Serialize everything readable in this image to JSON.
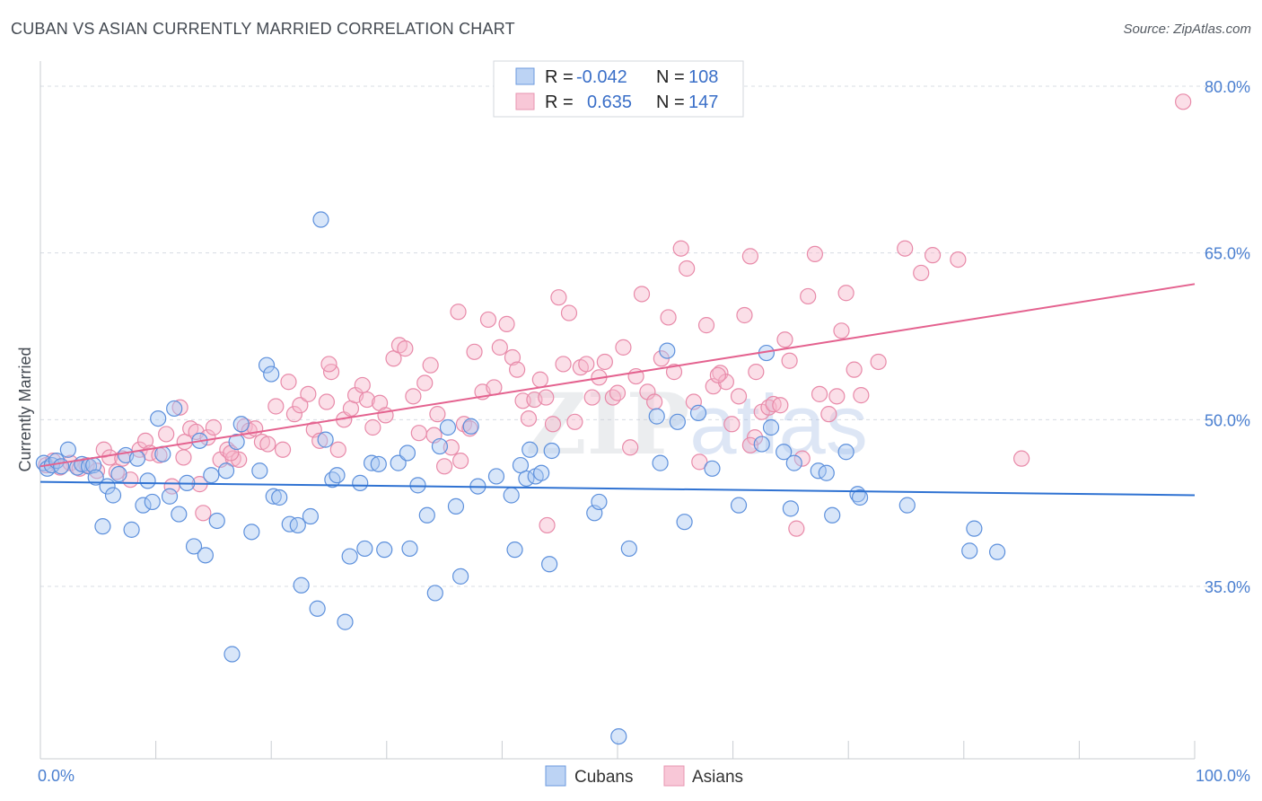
{
  "title": "CUBAN VS ASIAN CURRENTLY MARRIED CORRELATION CHART",
  "source": "Source: ZipAtlas.com",
  "watermark": "ZIPatlas",
  "colors": {
    "cubans_fill": "#a9c7f2",
    "cubans_stroke": "#5d90dc",
    "cubans_line": "#2f72d2",
    "asians_fill": "#f6b7cb",
    "asians_stroke": "#e88aa9",
    "asians_line": "#e4628f",
    "grid": "#d8dce3",
    "tick_label": "#4a7fd0"
  },
  "legend": {
    "rows": [
      {
        "series": "Cubans",
        "r_label": "R =",
        "r_value": "-0.042",
        "n_label": "N =",
        "n_value": "108"
      },
      {
        "series": "Asians",
        "r_label": "R =",
        "r_value": "0.635",
        "n_label": "N =",
        "n_value": "147"
      }
    ]
  },
  "chart_data": {
    "type": "scatter",
    "title": "CUBAN VS ASIAN CURRENTLY MARRIED CORRELATION CHART",
    "xlabel": "",
    "ylabel": "Currently Married",
    "xlim": [
      0,
      100
    ],
    "ylim": [
      20,
      82
    ],
    "x_tick_labels": [
      "0.0%",
      "100.0%"
    ],
    "y_ticks": [
      35,
      50,
      65,
      80
    ],
    "y_tick_labels": [
      "35.0%",
      "50.0%",
      "65.0%",
      "80.0%"
    ],
    "grid": true,
    "legend_position": "bottom-center",
    "series": [
      {
        "name": "Cubans",
        "r": -0.042,
        "n": 108,
        "trend": {
          "x": [
            0,
            100
          ],
          "y": [
            44.4,
            43.2
          ]
        },
        "points": [
          [
            0.3,
            46.1
          ],
          [
            0.6,
            45.6
          ],
          [
            1.0,
            45.9
          ],
          [
            1.4,
            46.3
          ],
          [
            1.8,
            45.8
          ],
          [
            2.4,
            47.3
          ],
          [
            3.2,
            45.7
          ],
          [
            3.6,
            46.0
          ],
          [
            4.2,
            45.8
          ],
          [
            4.6,
            45.9
          ],
          [
            4.8,
            44.8
          ],
          [
            5.4,
            40.4
          ],
          [
            5.8,
            44.0
          ],
          [
            6.3,
            43.2
          ],
          [
            6.8,
            45.1
          ],
          [
            7.4,
            46.8
          ],
          [
            7.9,
            40.1
          ],
          [
            8.4,
            46.5
          ],
          [
            8.9,
            42.3
          ],
          [
            9.3,
            44.5
          ],
          [
            9.7,
            42.6
          ],
          [
            10.2,
            50.1
          ],
          [
            10.6,
            46.9
          ],
          [
            11.2,
            43.1
          ],
          [
            11.6,
            51.0
          ],
          [
            12.0,
            41.5
          ],
          [
            12.7,
            44.3
          ],
          [
            13.3,
            38.6
          ],
          [
            13.8,
            48.1
          ],
          [
            14.3,
            37.8
          ],
          [
            14.8,
            45.0
          ],
          [
            15.3,
            40.9
          ],
          [
            16.1,
            45.4
          ],
          [
            16.6,
            28.9
          ],
          [
            17.0,
            48.0
          ],
          [
            17.4,
            49.6
          ],
          [
            18.3,
            39.9
          ],
          [
            19.0,
            45.4
          ],
          [
            19.6,
            54.9
          ],
          [
            20.0,
            54.1
          ],
          [
            20.2,
            43.1
          ],
          [
            20.7,
            43.0
          ],
          [
            21.6,
            40.6
          ],
          [
            22.3,
            40.5
          ],
          [
            22.6,
            35.1
          ],
          [
            23.4,
            41.3
          ],
          [
            24.0,
            33.0
          ],
          [
            24.3,
            68.0
          ],
          [
            24.7,
            48.2
          ],
          [
            25.3,
            44.6
          ],
          [
            25.7,
            45.0
          ],
          [
            26.4,
            31.8
          ],
          [
            26.8,
            37.7
          ],
          [
            27.7,
            44.3
          ],
          [
            28.1,
            38.4
          ],
          [
            28.7,
            46.1
          ],
          [
            29.3,
            46.0
          ],
          [
            29.8,
            38.3
          ],
          [
            31.0,
            46.1
          ],
          [
            31.8,
            47.0
          ],
          [
            32.0,
            38.4
          ],
          [
            32.7,
            44.1
          ],
          [
            33.5,
            41.4
          ],
          [
            34.2,
            34.4
          ],
          [
            34.6,
            47.6
          ],
          [
            35.3,
            49.3
          ],
          [
            36.0,
            42.2
          ],
          [
            36.4,
            35.9
          ],
          [
            37.3,
            49.4
          ],
          [
            37.9,
            44.0
          ],
          [
            39.5,
            44.9
          ],
          [
            40.8,
            43.2
          ],
          [
            41.1,
            38.3
          ],
          [
            41.6,
            45.9
          ],
          [
            42.1,
            44.7
          ],
          [
            42.4,
            47.3
          ],
          [
            42.9,
            44.9
          ],
          [
            43.4,
            45.2
          ],
          [
            44.1,
            37.0
          ],
          [
            44.3,
            47.2
          ],
          [
            48.0,
            41.6
          ],
          [
            48.4,
            42.6
          ],
          [
            50.1,
            21.5
          ],
          [
            51.0,
            38.4
          ],
          [
            53.4,
            50.3
          ],
          [
            53.7,
            46.1
          ],
          [
            54.3,
            56.2
          ],
          [
            55.2,
            49.8
          ],
          [
            55.8,
            40.8
          ],
          [
            57.0,
            50.6
          ],
          [
            58.2,
            45.6
          ],
          [
            60.5,
            42.3
          ],
          [
            62.5,
            47.8
          ],
          [
            62.9,
            56.0
          ],
          [
            63.3,
            49.3
          ],
          [
            64.4,
            47.1
          ],
          [
            65.0,
            42.0
          ],
          [
            65.3,
            46.1
          ],
          [
            67.4,
            45.4
          ],
          [
            68.1,
            45.2
          ],
          [
            68.6,
            41.4
          ],
          [
            69.8,
            47.1
          ],
          [
            70.8,
            43.3
          ],
          [
            71.0,
            43.0
          ],
          [
            75.1,
            42.3
          ],
          [
            80.5,
            38.2
          ],
          [
            80.9,
            40.2
          ],
          [
            82.9,
            38.1
          ]
        ]
      },
      {
        "name": "Asians",
        "r": 0.635,
        "n": 147,
        "trend": {
          "x": [
            0,
            100
          ],
          "y": [
            45.8,
            62.2
          ]
        },
        "points": [
          [
            0.5,
            45.9
          ],
          [
            1.1,
            46.3
          ],
          [
            1.7,
            45.7
          ],
          [
            2.6,
            46.1
          ],
          [
            3.4,
            45.6
          ],
          [
            4.0,
            45.9
          ],
          [
            4.9,
            45.4
          ],
          [
            5.5,
            47.3
          ],
          [
            6.0,
            46.6
          ],
          [
            6.6,
            45.3
          ],
          [
            7.1,
            46.5
          ],
          [
            7.8,
            44.6
          ],
          [
            8.6,
            47.3
          ],
          [
            9.1,
            48.1
          ],
          [
            9.5,
            47.0
          ],
          [
            10.3,
            46.8
          ],
          [
            10.9,
            48.7
          ],
          [
            11.4,
            44.0
          ],
          [
            12.1,
            51.1
          ],
          [
            12.5,
            48.0
          ],
          [
            13.0,
            49.2
          ],
          [
            13.5,
            48.9
          ],
          [
            14.1,
            41.6
          ],
          [
            14.5,
            48.4
          ],
          [
            15.0,
            49.3
          ],
          [
            15.6,
            46.4
          ],
          [
            16.2,
            47.3
          ],
          [
            16.7,
            46.5
          ],
          [
            17.2,
            46.4
          ],
          [
            17.7,
            49.4
          ],
          [
            18.1,
            49.0
          ],
          [
            18.6,
            49.2
          ],
          [
            19.2,
            48.0
          ],
          [
            19.7,
            47.8
          ],
          [
            20.4,
            51.2
          ],
          [
            21.0,
            47.3
          ],
          [
            21.5,
            53.4
          ],
          [
            22.0,
            50.5
          ],
          [
            22.5,
            51.3
          ],
          [
            23.2,
            52.3
          ],
          [
            23.7,
            49.1
          ],
          [
            24.2,
            48.1
          ],
          [
            24.8,
            51.6
          ],
          [
            25.2,
            54.3
          ],
          [
            25.8,
            47.3
          ],
          [
            26.3,
            50.0
          ],
          [
            26.9,
            51.0
          ],
          [
            27.3,
            52.2
          ],
          [
            27.9,
            53.1
          ],
          [
            28.3,
            51.8
          ],
          [
            28.8,
            49.3
          ],
          [
            29.4,
            51.5
          ],
          [
            29.9,
            50.4
          ],
          [
            30.6,
            55.5
          ],
          [
            31.1,
            56.7
          ],
          [
            31.6,
            56.4
          ],
          [
            32.3,
            52.1
          ],
          [
            32.8,
            48.8
          ],
          [
            33.3,
            53.3
          ],
          [
            33.8,
            54.9
          ],
          [
            34.4,
            50.5
          ],
          [
            35.0,
            45.8
          ],
          [
            35.6,
            47.5
          ],
          [
            36.2,
            59.7
          ],
          [
            36.7,
            49.6
          ],
          [
            37.2,
            49.2
          ],
          [
            37.6,
            56.1
          ],
          [
            38.3,
            52.5
          ],
          [
            38.8,
            59.0
          ],
          [
            39.3,
            52.9
          ],
          [
            39.8,
            56.5
          ],
          [
            40.4,
            58.6
          ],
          [
            40.9,
            55.6
          ],
          [
            41.3,
            54.5
          ],
          [
            41.8,
            51.7
          ],
          [
            42.3,
            50.1
          ],
          [
            42.8,
            51.8
          ],
          [
            43.3,
            53.6
          ],
          [
            43.8,
            52.0
          ],
          [
            44.4,
            49.6
          ],
          [
            44.9,
            61.0
          ],
          [
            45.3,
            55.0
          ],
          [
            45.8,
            59.6
          ],
          [
            46.3,
            49.8
          ],
          [
            46.8,
            54.7
          ],
          [
            47.3,
            55.0
          ],
          [
            47.8,
            52.0
          ],
          [
            48.4,
            53.8
          ],
          [
            48.9,
            55.2
          ],
          [
            49.6,
            52.0
          ],
          [
            50.0,
            52.4
          ],
          [
            50.5,
            56.5
          ],
          [
            51.1,
            47.5
          ],
          [
            51.6,
            53.9
          ],
          [
            52.1,
            61.3
          ],
          [
            52.6,
            52.5
          ],
          [
            53.2,
            51.6
          ],
          [
            53.8,
            55.5
          ],
          [
            54.4,
            59.2
          ],
          [
            54.9,
            54.3
          ],
          [
            55.5,
            65.4
          ],
          [
            56.0,
            63.6
          ],
          [
            56.6,
            51.6
          ],
          [
            57.1,
            46.2
          ],
          [
            57.7,
            58.5
          ],
          [
            58.3,
            53.0
          ],
          [
            58.9,
            54.2
          ],
          [
            59.4,
            53.4
          ],
          [
            59.9,
            49.6
          ],
          [
            60.5,
            52.1
          ],
          [
            61.0,
            59.4
          ],
          [
            61.5,
            64.7
          ],
          [
            61.9,
            48.4
          ],
          [
            62.5,
            50.7
          ],
          [
            63.1,
            51.1
          ],
          [
            63.5,
            51.4
          ],
          [
            64.1,
            51.3
          ],
          [
            64.5,
            57.2
          ],
          [
            64.9,
            55.3
          ],
          [
            65.5,
            40.2
          ],
          [
            66.0,
            46.5
          ],
          [
            66.5,
            61.1
          ],
          [
            67.1,
            64.9
          ],
          [
            67.5,
            52.3
          ],
          [
            68.3,
            50.5
          ],
          [
            69.0,
            52.1
          ],
          [
            69.4,
            58.0
          ],
          [
            69.8,
            61.4
          ],
          [
            70.5,
            54.5
          ],
          [
            71.1,
            52.2
          ],
          [
            72.6,
            55.2
          ],
          [
            74.9,
            65.4
          ],
          [
            76.3,
            63.2
          ],
          [
            77.3,
            64.8
          ],
          [
            79.5,
            64.4
          ],
          [
            85.0,
            46.5
          ],
          [
            99.0,
            78.6
          ],
          [
            34.1,
            48.6
          ],
          [
            25.0,
            55.0
          ],
          [
            16.5,
            47.0
          ],
          [
            61.5,
            47.7
          ],
          [
            13.8,
            44.2
          ],
          [
            43.9,
            40.5
          ],
          [
            62.0,
            54.3
          ],
          [
            58.7,
            54.0
          ],
          [
            12.4,
            46.6
          ],
          [
            36.4,
            46.3
          ]
        ]
      }
    ]
  }
}
